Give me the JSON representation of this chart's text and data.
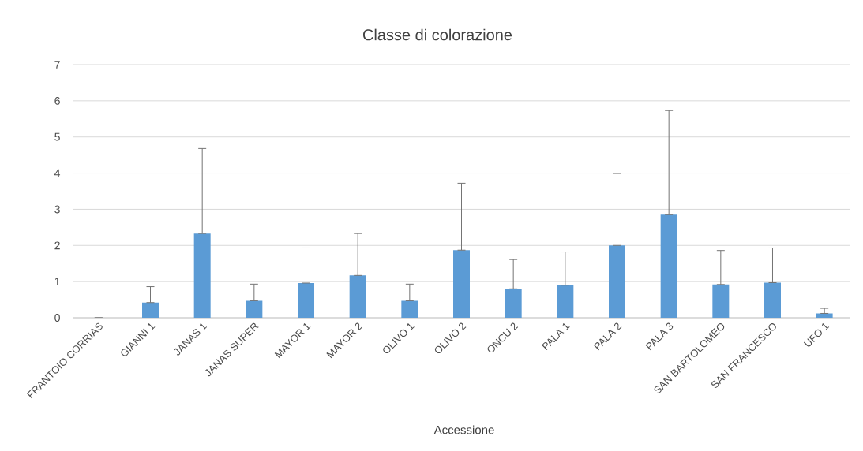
{
  "chart_data": {
    "type": "bar",
    "title": "Classe di colorazione",
    "xlabel": "Accessione",
    "categories": [
      "FRANTOIO CORRIAS",
      "GIANNI 1",
      "JANAS 1",
      "JANAS SUPER",
      "MAYOR 1",
      "MAYOR 2",
      "OLIVO 1",
      "OLIVO 2",
      "ONCU 2",
      "PALA 1",
      "PALA 2",
      "PALA 3",
      "SAN BARTOLOMEO",
      "SAN FRANCESCO",
      "UFO 1"
    ],
    "values": [
      0,
      0.42,
      2.33,
      0.47,
      0.96,
      1.17,
      0.47,
      1.87,
      0.8,
      0.9,
      2.0,
      2.85,
      0.92,
      0.97,
      0.12
    ],
    "errors": [
      null,
      [
        0.42,
        0.86
      ],
      [
        2.33,
        4.68
      ],
      [
        0.47,
        0.93
      ],
      [
        0.96,
        1.93
      ],
      [
        1.17,
        2.33
      ],
      [
        0.47,
        0.93
      ],
      [
        1.87,
        3.72
      ],
      [
        0.8,
        1.61
      ],
      [
        0.9,
        1.82
      ],
      [
        2.0,
        3.99
      ],
      [
        2.85,
        5.73
      ],
      [
        0.92,
        1.86
      ],
      [
        0.97,
        1.93
      ],
      [
        0.12,
        0.26
      ]
    ],
    "color": "#5b9bd5",
    "ylim": [
      0,
      7
    ],
    "yticks": [
      0,
      1,
      2,
      3,
      4,
      5,
      6,
      7
    ],
    "grid": "y"
  }
}
